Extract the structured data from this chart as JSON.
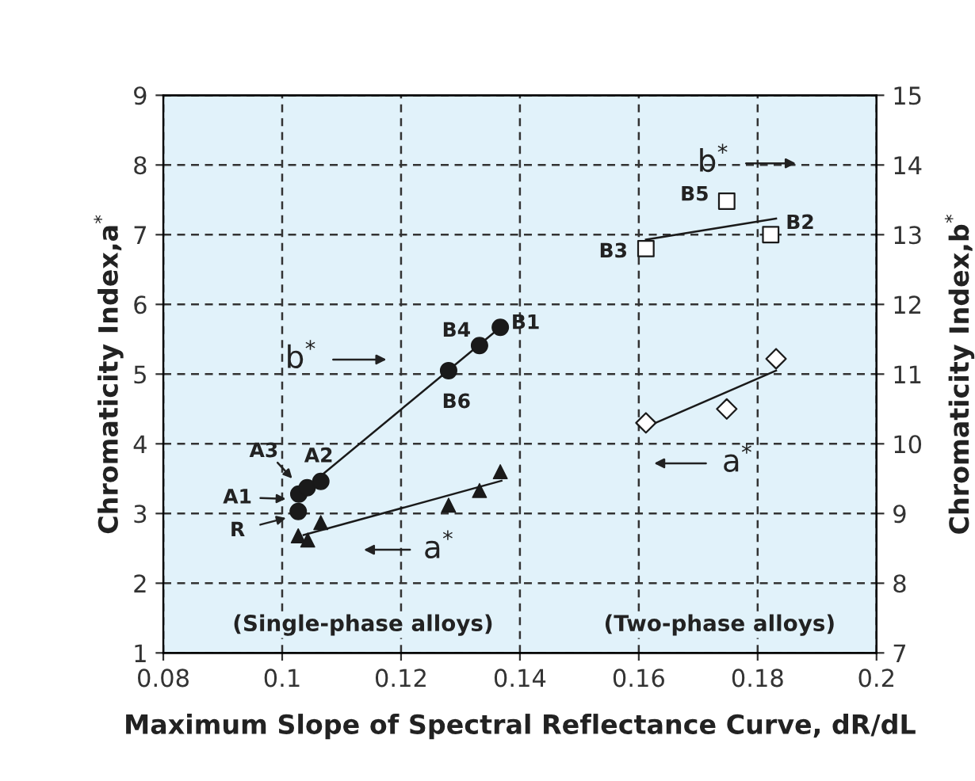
{
  "chart_data": {
    "type": "scatter",
    "xlabel": "Maximum Slope of Spectral Reflectance Curve, dR/dL",
    "ylabel": "Chromaticity Index,a$^{*}$",
    "y2label": "Chromaticity Index,b$^{*}$",
    "xlim": [
      0.08,
      0.2
    ],
    "xticks": [
      0.08,
      0.1,
      0.12,
      0.14,
      0.16,
      0.18,
      0.2
    ],
    "ylim": [
      1,
      9
    ],
    "yticks": [
      1,
      2,
      3,
      4,
      5,
      6,
      7,
      8,
      9
    ],
    "y2lim": [
      7,
      15
    ],
    "y2ticks": [
      7,
      8,
      9,
      10,
      11,
      12,
      13,
      14,
      15
    ],
    "grid": true,
    "series": [
      {
        "marker": "circle",
        "color": "#1a1a1a",
        "axis": "y2",
        "x": [
          0.1027,
          0.1028,
          0.1042,
          0.1065,
          0.128,
          0.1332,
          0.1367
        ],
        "values": [
          9.03,
          9.28,
          9.37,
          9.46,
          11.05,
          11.41,
          11.67
        ]
      },
      {
        "type": "line",
        "marker": "none",
        "color": "#1a1a1a",
        "axis": "y2",
        "x": [
          0.1028,
          0.1367
        ],
        "values": [
          9.28,
          11.67
        ]
      },
      {
        "marker": "triangle",
        "color": "#1a1a1a",
        "x": [
          0.1027,
          0.1037,
          0.1043,
          0.1065,
          0.128,
          0.1332,
          0.1367
        ],
        "values": [
          2.68,
          null,
          2.62,
          2.87,
          3.12,
          3.33,
          3.6
        ]
      },
      {
        "type": "line",
        "marker": "none",
        "color": "#1a1a1a",
        "x": [
          0.1036,
          0.1369
        ],
        "values": [
          2.69,
          3.47
        ]
      },
      {
        "marker": "square",
        "color": "#ffffff",
        "axis": "y2",
        "x": [
          0.1612,
          0.1748,
          0.1822
        ],
        "values": [
          12.8,
          13.48,
          13.0
        ]
      },
      {
        "type": "line",
        "marker": "none",
        "color": "#1a1a1a",
        "axis": "y2",
        "x": [
          0.1612,
          0.1831
        ],
        "values": [
          12.93,
          13.23
        ]
      },
      {
        "marker": "diamond",
        "color": "#ffffff",
        "x": [
          0.1612,
          0.1748,
          0.1831
        ],
        "values": [
          4.3,
          4.5,
          5.22
        ]
      },
      {
        "type": "line",
        "marker": "none",
        "color": "#1a1a1a",
        "x": [
          0.1612,
          0.1831
        ],
        "values": [
          4.24,
          5.05
        ]
      }
    ],
    "annotations": [
      "R",
      "A1",
      "A3",
      "A2",
      "B6",
      "B4",
      "B1",
      "B3",
      "B5",
      "B2",
      "b$^{*}$",
      "a$^{*}$",
      "b$^{*}$",
      "a$^{*}$",
      "(Single-phase alloys)",
      "(Two-phase alloys)"
    ]
  }
}
